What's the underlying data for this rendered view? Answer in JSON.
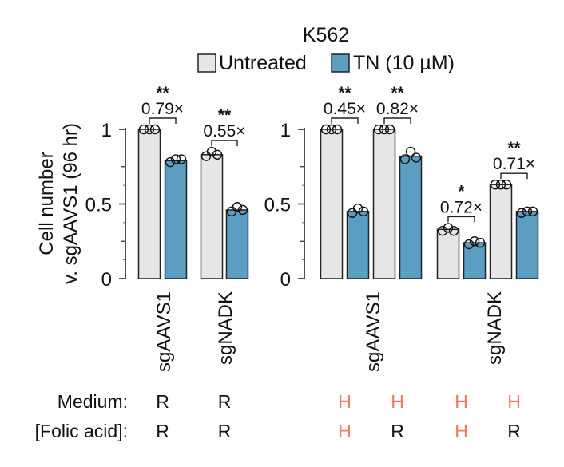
{
  "chart_data": {
    "type": "bar",
    "title": "K562",
    "ylabel_line1": "Cell number",
    "ylabel_line2": "v. sgAAVS1 (96 hr)",
    "ylim": [
      0,
      1
    ],
    "yticks": [
      0,
      0.5,
      1
    ],
    "ytick_labels": [
      "0",
      "0.5",
      "1"
    ],
    "legend": [
      {
        "name": "Untreated",
        "color": "#e6e6e6"
      },
      {
        "name": "TN (10 µM)",
        "color": "#5b9ec2"
      }
    ],
    "row_labels": {
      "medium": "Medium:",
      "folic": "[Folic acid]:"
    },
    "panels": [
      {
        "groups": [
          {
            "category": "sgAAVS1",
            "medium": "R",
            "folic": "R",
            "values": [
              1.0,
              0.79
            ],
            "replicates": [
              [
                1.0,
                1.0,
                1.0
              ],
              [
                0.78,
                0.8,
                0.8
              ]
            ],
            "fold_change": "0.79×",
            "significance": "**"
          },
          {
            "category": "sgNADK",
            "medium": "R",
            "folic": "R",
            "values": [
              0.83,
              0.46
            ],
            "replicates": [
              [
                0.82,
                0.85,
                0.83
              ],
              [
                0.45,
                0.48,
                0.46
              ]
            ],
            "fold_change": "0.55×",
            "significance": "**"
          }
        ],
        "category_labels": [
          "sgAAVS1",
          "sgNADK"
        ]
      },
      {
        "groups": [
          {
            "category": "sgAAVS1",
            "medium": "H",
            "folic": "H",
            "values": [
              1.0,
              0.45
            ],
            "replicates": [
              [
                1.0,
                1.0,
                1.0
              ],
              [
                0.44,
                0.47,
                0.45
              ]
            ],
            "fold_change": "0.45×",
            "significance": "**"
          },
          {
            "category": "sgAAVS1",
            "medium": "H",
            "folic": "R",
            "values": [
              1.0,
              0.82
            ],
            "replicates": [
              [
                1.0,
                1.0,
                1.0
              ],
              [
                0.8,
                0.85,
                0.81
              ]
            ],
            "fold_change": "0.82×",
            "significance": "**"
          },
          {
            "category": "sgNADK",
            "medium": "H",
            "folic": "H",
            "values": [
              0.33,
              0.24
            ],
            "replicates": [
              [
                0.32,
                0.34,
                0.32
              ],
              [
                0.23,
                0.25,
                0.24
              ]
            ],
            "fold_change": "0.72×",
            "significance": "*"
          },
          {
            "category": "sgNADK",
            "medium": "H",
            "folic": "R",
            "values": [
              0.63,
              0.45
            ],
            "replicates": [
              [
                0.63,
                0.63,
                0.63
              ],
              [
                0.44,
                0.45,
                0.45
              ]
            ],
            "fold_change": "0.71×",
            "significance": "**"
          }
        ],
        "category_labels": [
          "sgAAVS1",
          "sgNADK"
        ]
      }
    ]
  },
  "colors": {
    "untreated": "#e6e6e6",
    "treated": "#5b9ec2",
    "condition_R": "#111111",
    "condition_H": "#f07a62"
  }
}
